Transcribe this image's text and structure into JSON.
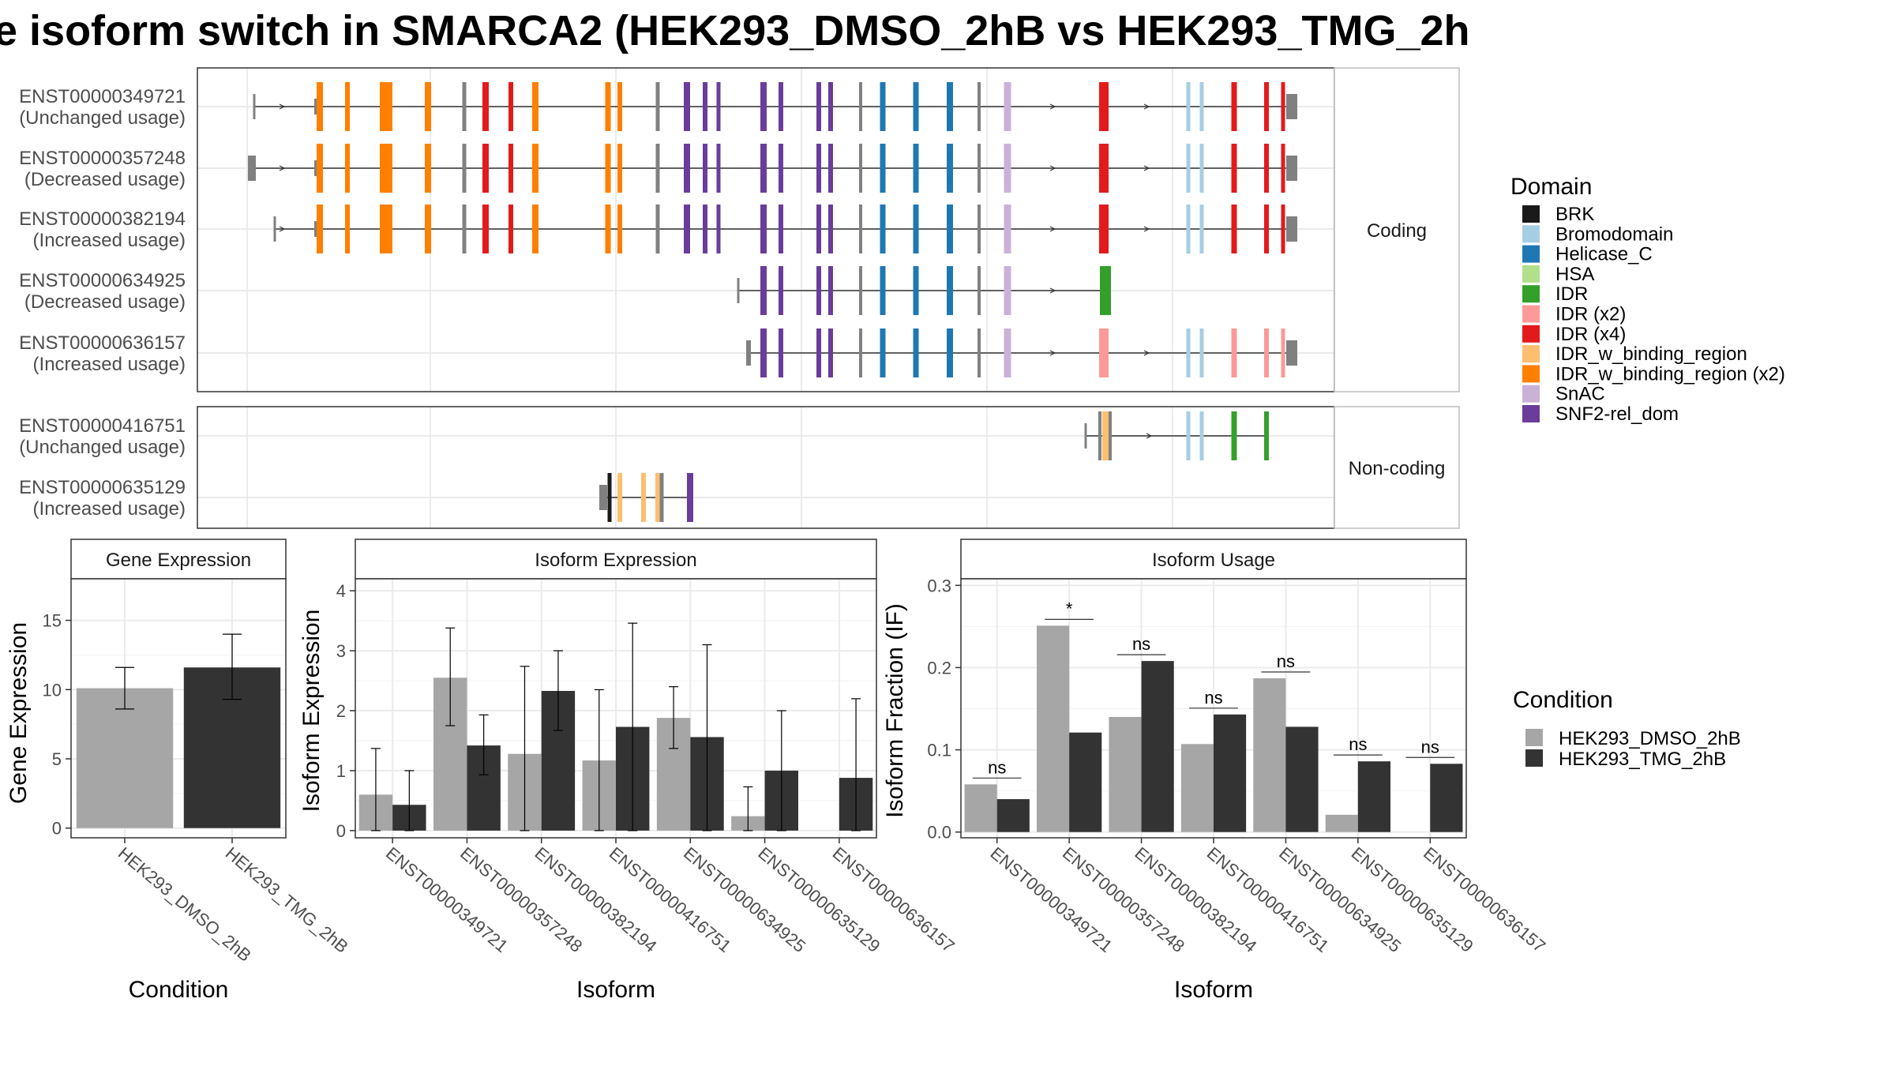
{
  "title": "e isoform switch in SMARCA2 (HEK293_DMSO_2hB vs HEK293_TMG_2h",
  "palette": {
    "grey_bar": "#a6a6a6",
    "dark_bar": "#333333",
    "exon_grey": "#808080"
  },
  "legend_domain": {
    "title": "Domain",
    "items": [
      {
        "label": "BRK",
        "color": "#1a1a1a"
      },
      {
        "label": "Bromodomain",
        "color": "#a6cee3"
      },
      {
        "label": "Helicase_C",
        "color": "#1f78b4"
      },
      {
        "label": "HSA",
        "color": "#b2df8a"
      },
      {
        "label": "IDR",
        "color": "#33a02c"
      },
      {
        "label": "IDR (x2)",
        "color": "#fb9a99"
      },
      {
        "label": "IDR (x4)",
        "color": "#e31a1c"
      },
      {
        "label": "IDR_w_binding_region",
        "color": "#fdbf6f"
      },
      {
        "label": "IDR_w_binding_region (x2)",
        "color": "#ff7f00"
      },
      {
        "label": "SnAC",
        "color": "#cab2d6"
      },
      {
        "label": "SNF2-rel_dom",
        "color": "#6a3d9a"
      }
    ]
  },
  "legend_condition": {
    "title": "Condition",
    "items": [
      {
        "label": "HEK293_DMSO_2hB",
        "color": "#a6a6a6"
      },
      {
        "label": "HEK293_TMG_2hB",
        "color": "#333333"
      }
    ]
  },
  "isoform_panels": [
    {
      "strip": "Coding",
      "rows": [
        {
          "id": "ENST00000349721",
          "usage": "(Unchanged usage)"
        },
        {
          "id": "ENST00000357248",
          "usage": "(Decreased usage)"
        },
        {
          "id": "ENST00000382194",
          "usage": "(Increased usage)"
        },
        {
          "id": "ENST00000634925",
          "usage": "(Decreased usage)"
        },
        {
          "id": "ENST00000636157",
          "usage": "(Increased usage)"
        }
      ]
    },
    {
      "strip": "Non-coding",
      "rows": [
        {
          "id": "ENST00000416751",
          "usage": "(Unchanged usage)"
        },
        {
          "id": "ENST00000635129",
          "usage": "(Increased usage)"
        }
      ]
    }
  ],
  "chart_data": [
    {
      "type": "bar",
      "title": "Gene Expression",
      "xlabel": "Condition",
      "ylabel": "Gene Expression",
      "categories": [
        "HEK293_DMSO_2hB",
        "HEK293_TMG_2hB"
      ],
      "values": [
        10.1,
        11.6
      ],
      "error_low": [
        8.6,
        9.3
      ],
      "error_high": [
        11.6,
        14.0
      ],
      "ylim": [
        -0.7,
        18
      ],
      "yticks": [
        0,
        5,
        10,
        15
      ]
    },
    {
      "type": "bar",
      "title": "Isoform Expression",
      "xlabel": "Isoform",
      "ylabel": "Isoform Expression",
      "categories": [
        "ENST00000349721",
        "ENST00000357248",
        "ENST00000382194",
        "ENST00000416751",
        "ENST00000634925",
        "ENST00000635129",
        "ENST00000636157"
      ],
      "series": [
        {
          "name": "HEK293_DMSO_2hB",
          "values": [
            0.6,
            2.55,
            1.28,
            1.17,
            1.88,
            0.24,
            0.0
          ],
          "error_low": [
            0.0,
            1.75,
            0.0,
            0.0,
            1.37,
            0.0,
            0.0
          ],
          "error_high": [
            1.37,
            3.38,
            2.74,
            2.35,
            2.4,
            0.73,
            0.0
          ]
        },
        {
          "name": "HEK293_TMG_2hB",
          "values": [
            0.43,
            1.42,
            2.33,
            1.73,
            1.56,
            1.0,
            0.88
          ],
          "error_low": [
            0.0,
            0.93,
            1.67,
            0.0,
            0.0,
            0.0,
            0.0
          ],
          "error_high": [
            1.0,
            1.93,
            3.0,
            3.46,
            3.1,
            2.0,
            2.2
          ]
        }
      ],
      "ylim": [
        -0.12,
        4.2
      ],
      "yticks": [
        0,
        1,
        2,
        3,
        4
      ]
    },
    {
      "type": "bar",
      "title": "Isoform Usage",
      "xlabel": "Isoform",
      "ylabel": "Isoform Fraction (IF)",
      "categories": [
        "ENST00000349721",
        "ENST00000357248",
        "ENST00000382194",
        "ENST00000416751",
        "ENST00000634925",
        "ENST00000635129",
        "ENST00000636157"
      ],
      "series": [
        {
          "name": "HEK293_DMSO_2hB",
          "values": [
            0.058,
            0.251,
            0.14,
            0.107,
            0.187,
            0.021,
            0.0
          ]
        },
        {
          "name": "HEK293_TMG_2hB",
          "values": [
            0.04,
            0.121,
            0.208,
            0.143,
            0.128,
            0.086,
            0.083
          ]
        }
      ],
      "significance": [
        "ns",
        "*",
        "ns",
        "ns",
        "ns",
        "ns",
        "ns"
      ],
      "ylim": [
        -0.007,
        0.308
      ],
      "yticks": [
        0.0,
        0.1,
        0.2,
        0.3
      ],
      "ytick_labels": [
        "0.0",
        "0.1",
        "0.2",
        "0.3"
      ]
    }
  ]
}
